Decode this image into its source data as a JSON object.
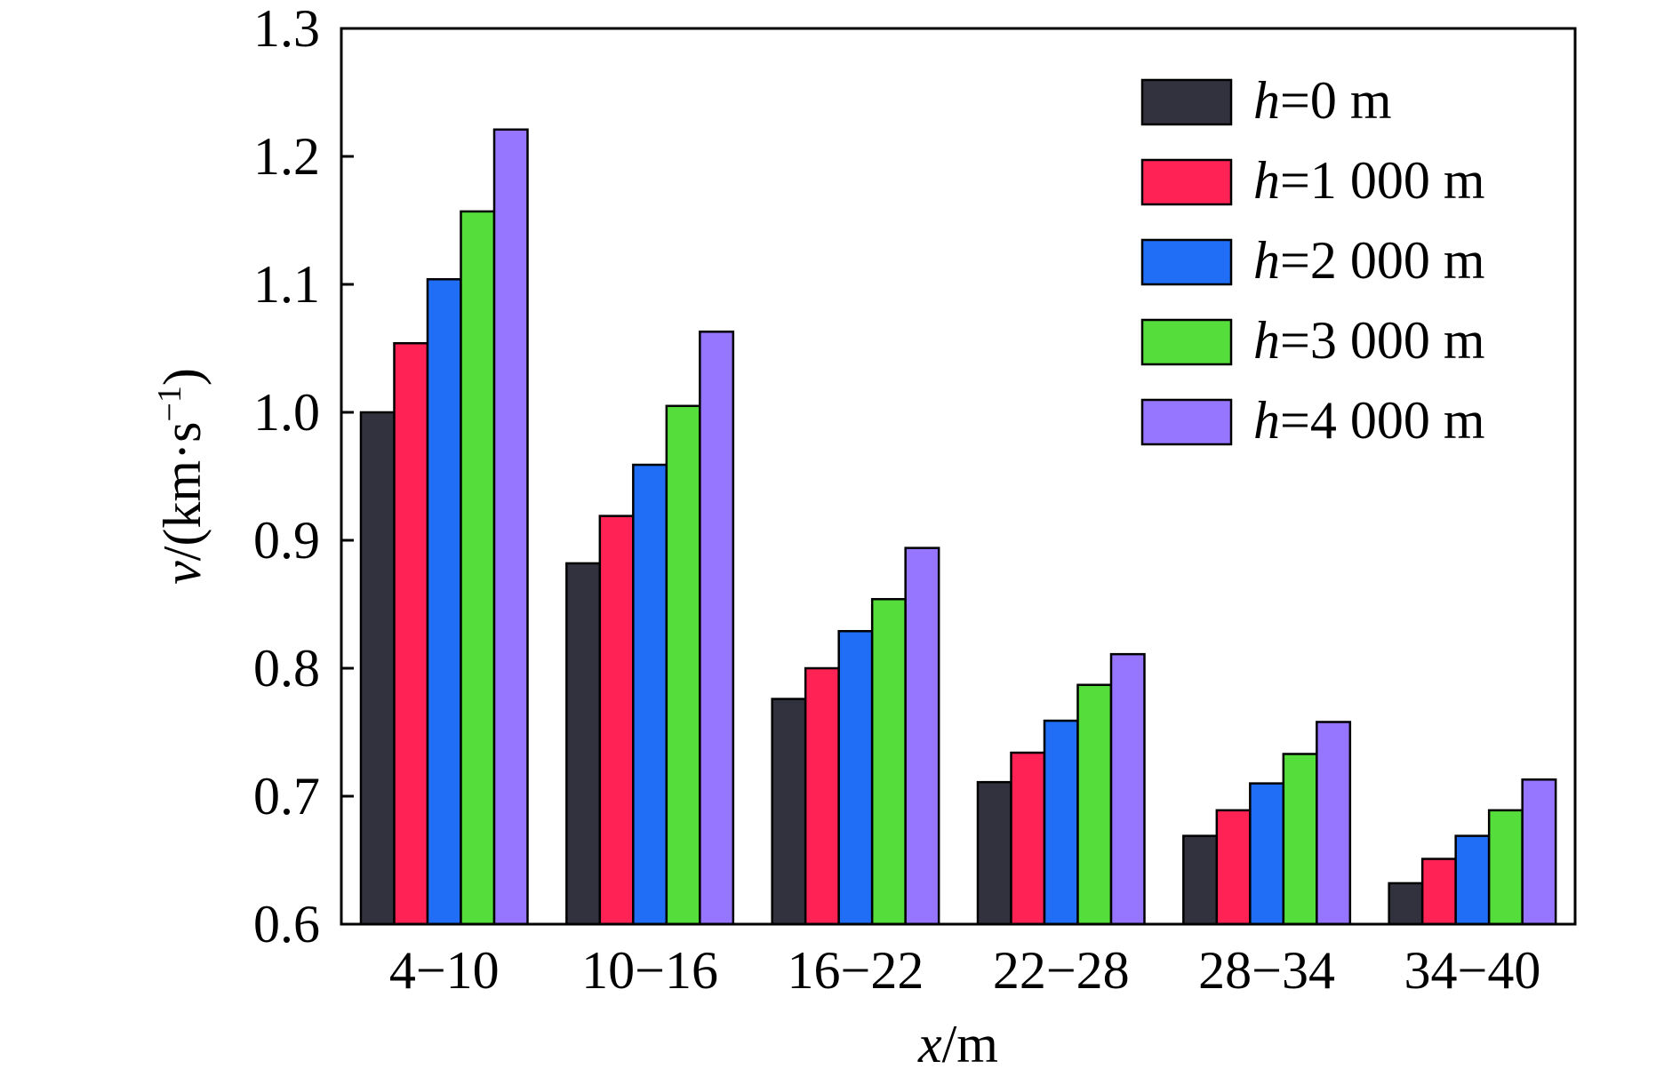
{
  "chart_data": {
    "type": "bar",
    "categories": [
      "4−10",
      "10−16",
      "16−22",
      "22−28",
      "28−34",
      "34−40"
    ],
    "series": [
      {
        "name": "h=0 m",
        "legend_var": "h",
        "legend_rest": "=0 m",
        "color": "#32323f",
        "values": [
          1.0,
          0.882,
          0.776,
          0.711,
          0.669,
          0.632
        ]
      },
      {
        "name": "h=1 000 m",
        "legend_var": "h",
        "legend_rest": "=1 000 m",
        "color": "#ff2255",
        "values": [
          1.054,
          0.919,
          0.8,
          0.734,
          0.689,
          0.651
        ]
      },
      {
        "name": "h=2 000 m",
        "legend_var": "h",
        "legend_rest": "=2 000 m",
        "color": "#1f6ef5",
        "values": [
          1.104,
          0.959,
          0.829,
          0.759,
          0.71,
          0.669
        ]
      },
      {
        "name": "h=3 000 m",
        "legend_var": "h",
        "legend_rest": "=3 000 m",
        "color": "#55dd3c",
        "values": [
          1.157,
          1.005,
          0.854,
          0.787,
          0.733,
          0.689
        ]
      },
      {
        "name": "h=4 000 m",
        "legend_var": "h",
        "legend_rest": "=4 000 m",
        "color": "#9676ff",
        "values": [
          1.221,
          1.063,
          0.894,
          0.811,
          0.758,
          0.713
        ]
      }
    ],
    "xlabel": {
      "var": "x",
      "rest": "/m"
    },
    "ylabel": {
      "var": "v",
      "rest": "/(km·s",
      "sup": "−1",
      "close": ")"
    },
    "ylim": [
      0.6,
      1.3
    ],
    "yticks": [
      "0.6",
      "0.7",
      "0.8",
      "0.9",
      "1.0",
      "1.1",
      "1.2",
      "1.3"
    ],
    "legend_position": "top-right",
    "grid": false
  }
}
